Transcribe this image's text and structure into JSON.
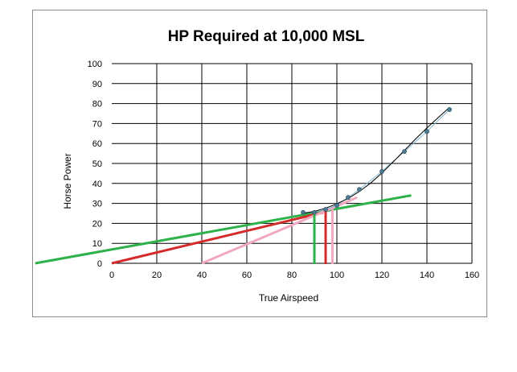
{
  "chart_data": {
    "type": "scatter",
    "title": "HP Required at 10,000 MSL",
    "xlabel": "True Airspeed",
    "ylabel": "Horse Power",
    "xlim": [
      0,
      160
    ],
    "ylim": [
      0,
      100
    ],
    "xticks": [
      "0",
      "20",
      "40",
      "60",
      "80",
      "100",
      "120",
      "140",
      "160"
    ],
    "yticks": [
      "0",
      "10",
      "20",
      "30",
      "40",
      "50",
      "60",
      "70",
      "80",
      "90",
      "100"
    ],
    "grid": true,
    "legend": "none",
    "data_points": {
      "x": [
        85,
        90,
        95,
        100,
        105,
        110,
        120,
        130,
        140,
        150
      ],
      "y": [
        25.5,
        25.5,
        27,
        29,
        33,
        37,
        46,
        56,
        66,
        77
      ],
      "color": "#4f7f96"
    },
    "trend_curve": {
      "x": [
        85,
        90,
        95,
        100,
        105,
        110,
        115,
        120,
        125,
        130,
        135,
        140,
        145,
        150
      ],
      "y": [
        25,
        26,
        27.6,
        29.8,
        32.5,
        36,
        40.2,
        45.2,
        50.8,
        56.5,
        62.3,
        67.8,
        73,
        78
      ],
      "color": "#000000"
    },
    "tangent_lines": [
      {
        "x": [
          -34,
          133
        ],
        "y": [
          0,
          34
        ],
        "color": "#2db24a"
      },
      {
        "x": [
          0,
          94
        ],
        "y": [
          0,
          25.5
        ],
        "color": "#d42a2a"
      },
      {
        "x": [
          40,
          109
        ],
        "y": [
          0,
          33
        ],
        "color": "#f2a7c0"
      }
    ],
    "vertical_markers": [
      {
        "x": 90,
        "y_top": 25.5,
        "color": "#2db24a"
      },
      {
        "x": 95,
        "y_top": 27,
        "color": "#d42a2a"
      },
      {
        "x": 98,
        "y_top": 28.5,
        "color": "#f2a7c0"
      }
    ]
  }
}
